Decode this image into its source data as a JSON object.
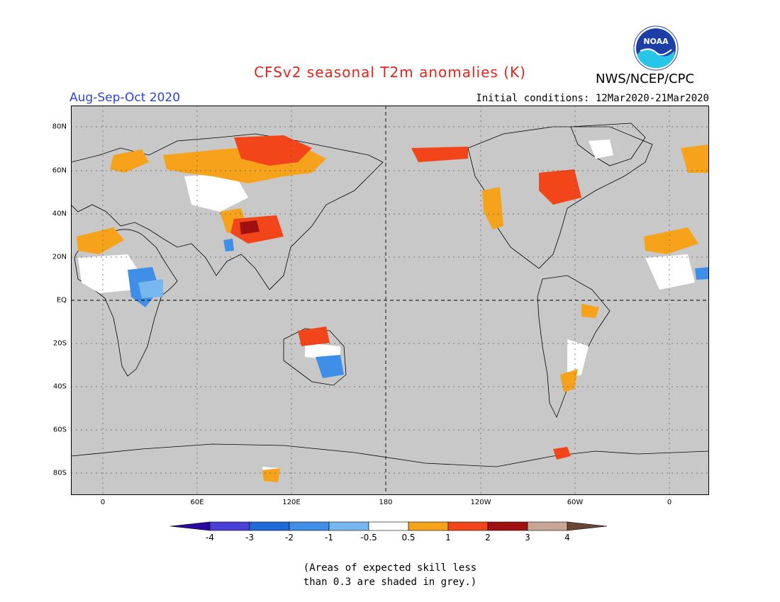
{
  "header": {
    "title": "CFSv2 seasonal T2m anomalies (K)",
    "season": "Aug-Sep-Oct 2020",
    "initial_conditions": "Initial conditions: 12Mar2020-21Mar2020",
    "agency": "NWS/NCEP/CPC",
    "logo_text": "NOAA"
  },
  "colors": {
    "title": "#e0251b",
    "season": "#2b45d8",
    "grey_skill": "#c8c8c8",
    "ocean": "#c8c8c8"
  },
  "map": {
    "longitude_labels": [
      "0",
      "60E",
      "120E",
      "180",
      "120W",
      "60W",
      "0"
    ],
    "latitude_labels": [
      "80N",
      "60N",
      "40N",
      "20N",
      "EQ",
      "20S",
      "40S",
      "60S",
      "80S"
    ]
  },
  "legend": {
    "tick_labels": [
      "-4",
      "-3",
      "-2",
      "-1",
      "-0.5",
      "0.5",
      "1",
      "2",
      "3",
      "4"
    ],
    "colors": [
      "#2a0a9e",
      "#4a3fd6",
      "#1f6ad6",
      "#3f8fe8",
      "#78b6f0",
      "#ffffff",
      "#f7a21b",
      "#f2461a",
      "#a11010",
      "#c9a596",
      "#6b4436"
    ]
  },
  "note": {
    "line1": "(Areas of expected skill less",
    "line2": "than 0.3 are shaded in grey.)"
  }
}
